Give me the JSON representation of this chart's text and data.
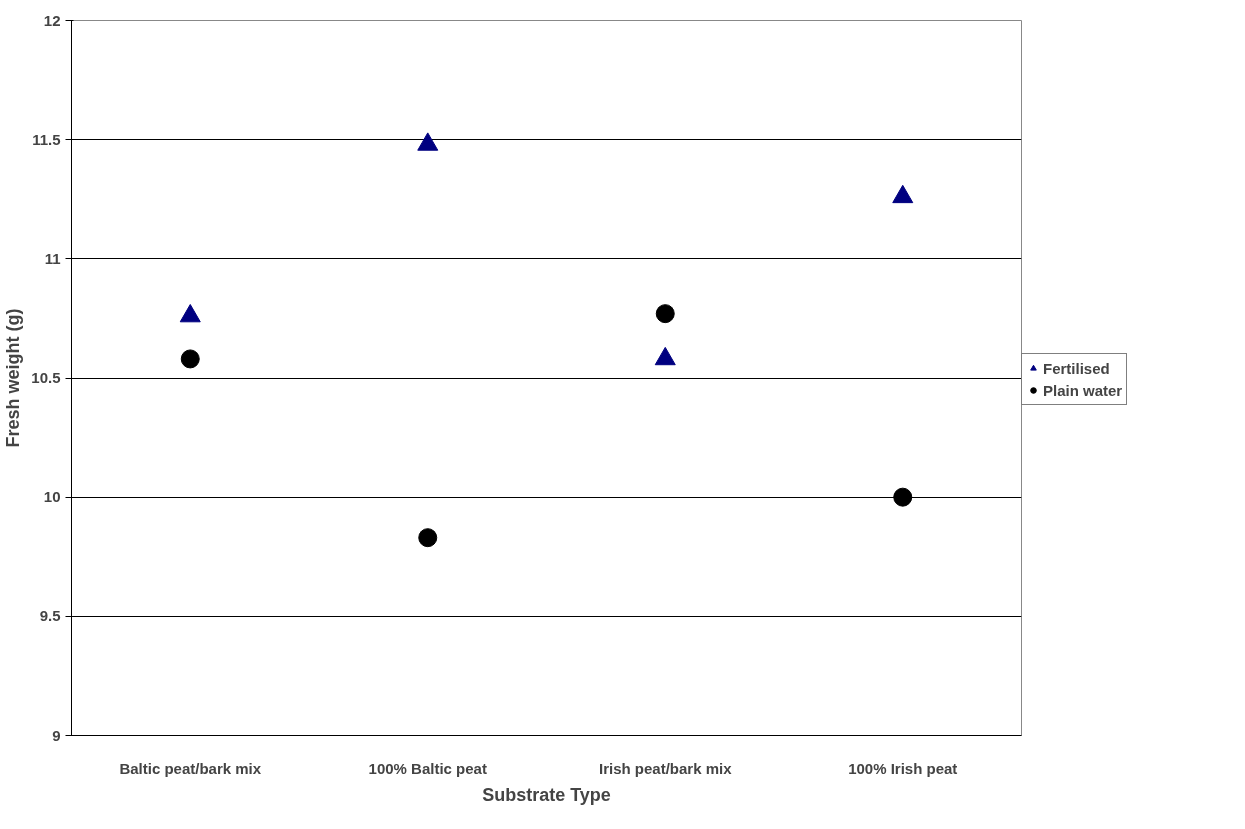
{
  "chart_data": {
    "type": "scatter",
    "xlabel": "Substrate Type",
    "ylabel": "Fresh weight (g)",
    "categories": [
      "Baltic peat/bark mix",
      "100% Baltic peat",
      "Irish peat/bark mix",
      "100% Irish peat"
    ],
    "series": [
      {
        "name": "Fertilised",
        "color": "#000080",
        "marker": "triangle",
        "values": [
          10.76,
          11.48,
          10.58,
          11.26
        ]
      },
      {
        "name": "Plain water",
        "color": "#000000",
        "marker": "circle",
        "values": [
          10.58,
          9.83,
          10.77,
          10.0
        ]
      }
    ],
    "ylim": [
      9,
      12
    ],
    "yticks": [
      9,
      9.5,
      10,
      10.5,
      11,
      11.5,
      12
    ],
    "grid": "y",
    "legend": "right"
  }
}
